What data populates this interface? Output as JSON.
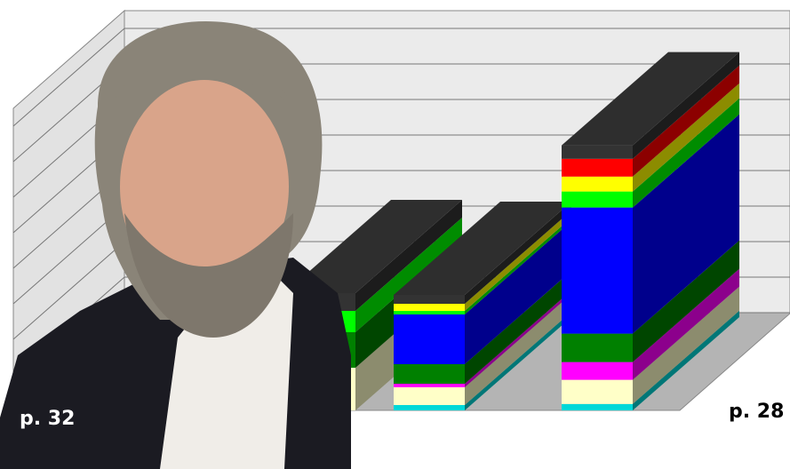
{
  "chart_data": {
    "type": "bar",
    "stacked": true,
    "categories": [
      null,
      null,
      null
    ],
    "series": [
      {
        "color": "#00d8d8",
        "values": [
          0,
          0.15,
          0.18
        ]
      },
      {
        "color": "#ffffc8",
        "values": [
          1.2,
          0.5,
          0.68
        ]
      },
      {
        "color": "#ff00ff",
        "values": [
          0,
          0.1,
          0.5
        ]
      },
      {
        "color": "#008000",
        "values": [
          1.0,
          0.55,
          0.8
        ]
      },
      {
        "color": "#0000ff",
        "values": [
          0,
          1.4,
          3.55
        ]
      },
      {
        "color": "#00ff00",
        "values": [
          0.6,
          0.1,
          0.45
        ]
      },
      {
        "color": "#ffff00",
        "values": [
          0,
          0.2,
          0.42
        ]
      },
      {
        "color": "#ff0000",
        "values": [
          0,
          0,
          0.5
        ]
      },
      {
        "color": "#333333",
        "values": [
          0.5,
          0.25,
          0.38
        ]
      }
    ],
    "ylim": [
      0,
      8.5
    ],
    "yticks": [
      0,
      1,
      2,
      3,
      4,
      5,
      6,
      7,
      8
    ],
    "grid": true
  },
  "photo": {
    "left_label": "p. 32"
  },
  "page_label": "p. 28"
}
